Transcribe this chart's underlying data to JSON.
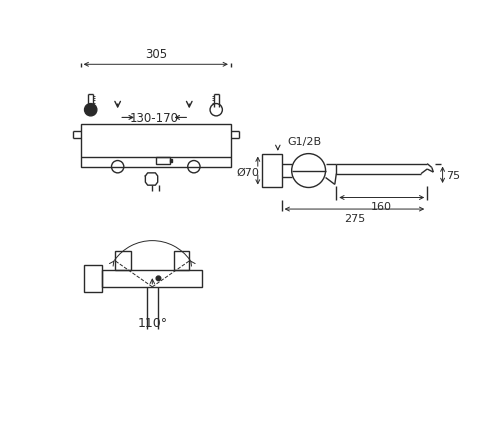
{
  "bg_color": "#ffffff",
  "line_color": "#2a2a2a",
  "lw": 1.0,
  "dlw": 0.7,
  "fig_w": 5.0,
  "fig_h": 4.35,
  "dpi": 100
}
